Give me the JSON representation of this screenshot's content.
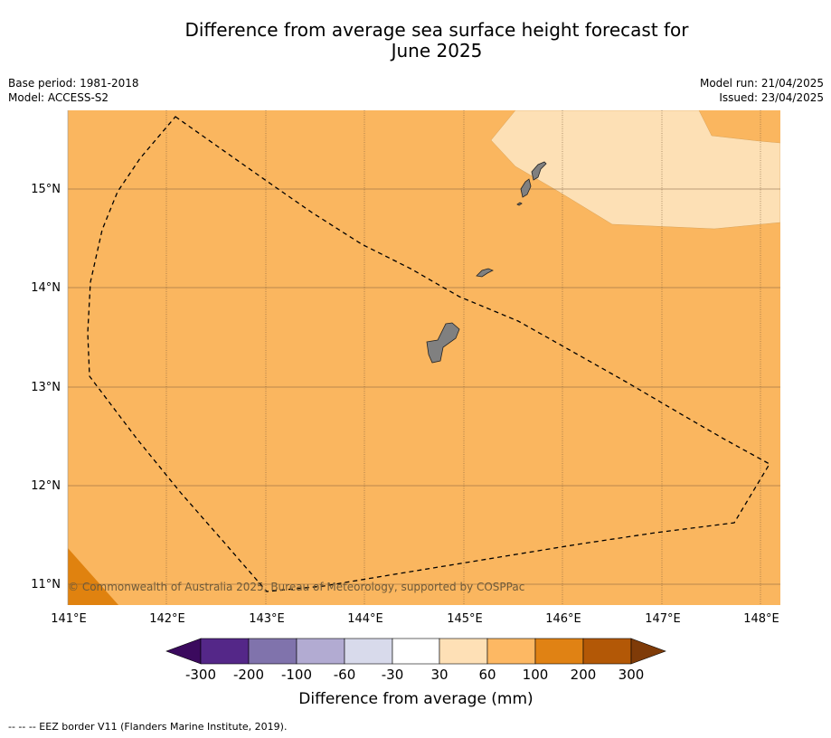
{
  "title_line1": "Difference from average sea surface height forecast for",
  "title_line2": "June 2025",
  "meta": {
    "base_period": "Base period: 1981-2018",
    "model": "Model: ACCESS-S2",
    "model_run": "Model run: 21/04/2025",
    "issued": "Issued: 23/04/2025"
  },
  "map": {
    "lon_ticks": [
      "141°E",
      "142°E",
      "143°E",
      "144°E",
      "145°E",
      "146°E",
      "147°E",
      "148°E"
    ],
    "lat_ticks": [
      "15°N",
      "14°N",
      "13°N",
      "12°N",
      "11°N"
    ],
    "credit": "© Commonwealth of Australia 2025, Bureau of Meteorology, supported by COSPPac",
    "colors": {
      "ocean_fill": "#fab65f",
      "light_fill": "#fde0b5",
      "dark_fill": "#e0820f",
      "land": "#808080",
      "eez_line": "#000000"
    }
  },
  "colorbar": {
    "labels": [
      "-300",
      "-200",
      "-100",
      "-60",
      "-30",
      "30",
      "60",
      "100",
      "200",
      "300"
    ],
    "colors": [
      "#3b0a5e",
      "#542788",
      "#8073ac",
      "#b2abd2",
      "#d8daeb",
      "#ffffff",
      "#fee0b6",
      "#fdb863",
      "#e08214",
      "#b35806",
      "#7f3b08"
    ],
    "title": "Difference from average (mm)"
  },
  "footnote": "--  --  -- EEZ border V11 (Flanders Marine Institute, 2019)."
}
